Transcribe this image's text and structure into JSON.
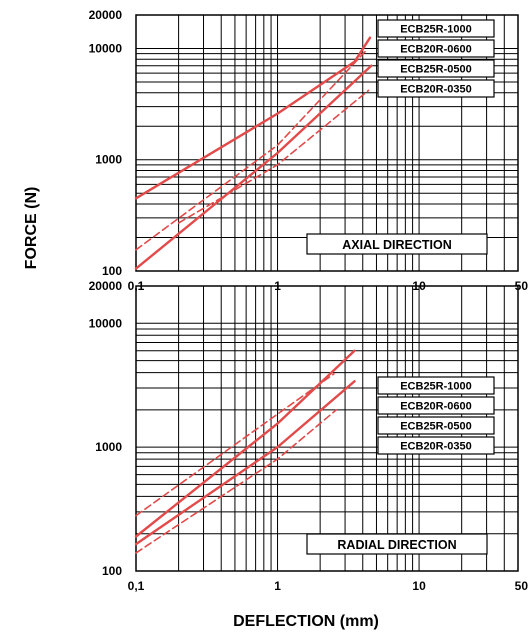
{
  "colors": {
    "curve": "#e34a4a",
    "grid": "#000000",
    "background": "#ffffff"
  },
  "y_axis_title": "FORCE (N)",
  "x_axis_title": "DEFLECTION (mm)",
  "chart_data": [
    {
      "type": "line",
      "panel": "axial",
      "annotation": "AXIAL DIRECTION",
      "xscale": "log",
      "yscale": "log",
      "xlim": [
        0.1,
        50
      ],
      "ylim": [
        100,
        20000
      ],
      "x_ticks": [
        "0,1",
        "1",
        "10",
        "50"
      ],
      "y_ticks": [
        "100",
        "1000",
        "10000",
        "20000"
      ],
      "grid": true,
      "legend_position": "top-right",
      "legend": [
        "ECB25R-1000",
        "ECB20R-0600",
        "ECB25R-0500",
        "ECB20R-0350"
      ],
      "series": [
        {
          "dash": false,
          "points": [
            [
              0.1,
              450
            ],
            [
              1,
              2600
            ],
            [
              3.5,
              7600
            ],
            [
              4.5,
              12500
            ]
          ]
        },
        {
          "dash": true,
          "points": [
            [
              0.1,
              155
            ],
            [
              1,
              1350
            ],
            [
              4.2,
              9500
            ]
          ]
        },
        {
          "dash": false,
          "points": [
            [
              0.1,
              105
            ],
            [
              1,
              1150
            ],
            [
              4.6,
              7000
            ]
          ]
        },
        {
          "dash": true,
          "points": [
            [
              0.2,
              270
            ],
            [
              1,
              900
            ],
            [
              4.4,
              4200
            ]
          ]
        }
      ]
    },
    {
      "type": "line",
      "panel": "radial",
      "annotation": "RADIAL DIRECTION",
      "xscale": "log",
      "yscale": "log",
      "xlim": [
        0.1,
        50
      ],
      "ylim": [
        100,
        20000
      ],
      "x_ticks": [
        "0,1",
        "1",
        "10",
        "50"
      ],
      "y_ticks": [
        "100",
        "1000",
        "10000",
        "20000"
      ],
      "grid": true,
      "legend_position": "right",
      "legend": [
        "ECB25R-1000",
        "ECB20R-0600",
        "ECB25R-0500",
        "ECB20R-0350"
      ],
      "series": [
        {
          "dash": true,
          "points": [
            [
              0.1,
              280
            ],
            [
              1,
              1850
            ],
            [
              2.5,
              3900
            ]
          ]
        },
        {
          "dash": false,
          "points": [
            [
              0.1,
              190
            ],
            [
              1,
              1550
            ],
            [
              3.5,
              6000
            ]
          ]
        },
        {
          "dash": false,
          "points": [
            [
              0.1,
              165
            ],
            [
              1,
              1000
            ],
            [
              3.5,
              3400
            ]
          ]
        },
        {
          "dash": true,
          "points": [
            [
              0.1,
              140
            ],
            [
              1,
              800
            ],
            [
              2.6,
              2000
            ]
          ]
        }
      ]
    }
  ]
}
